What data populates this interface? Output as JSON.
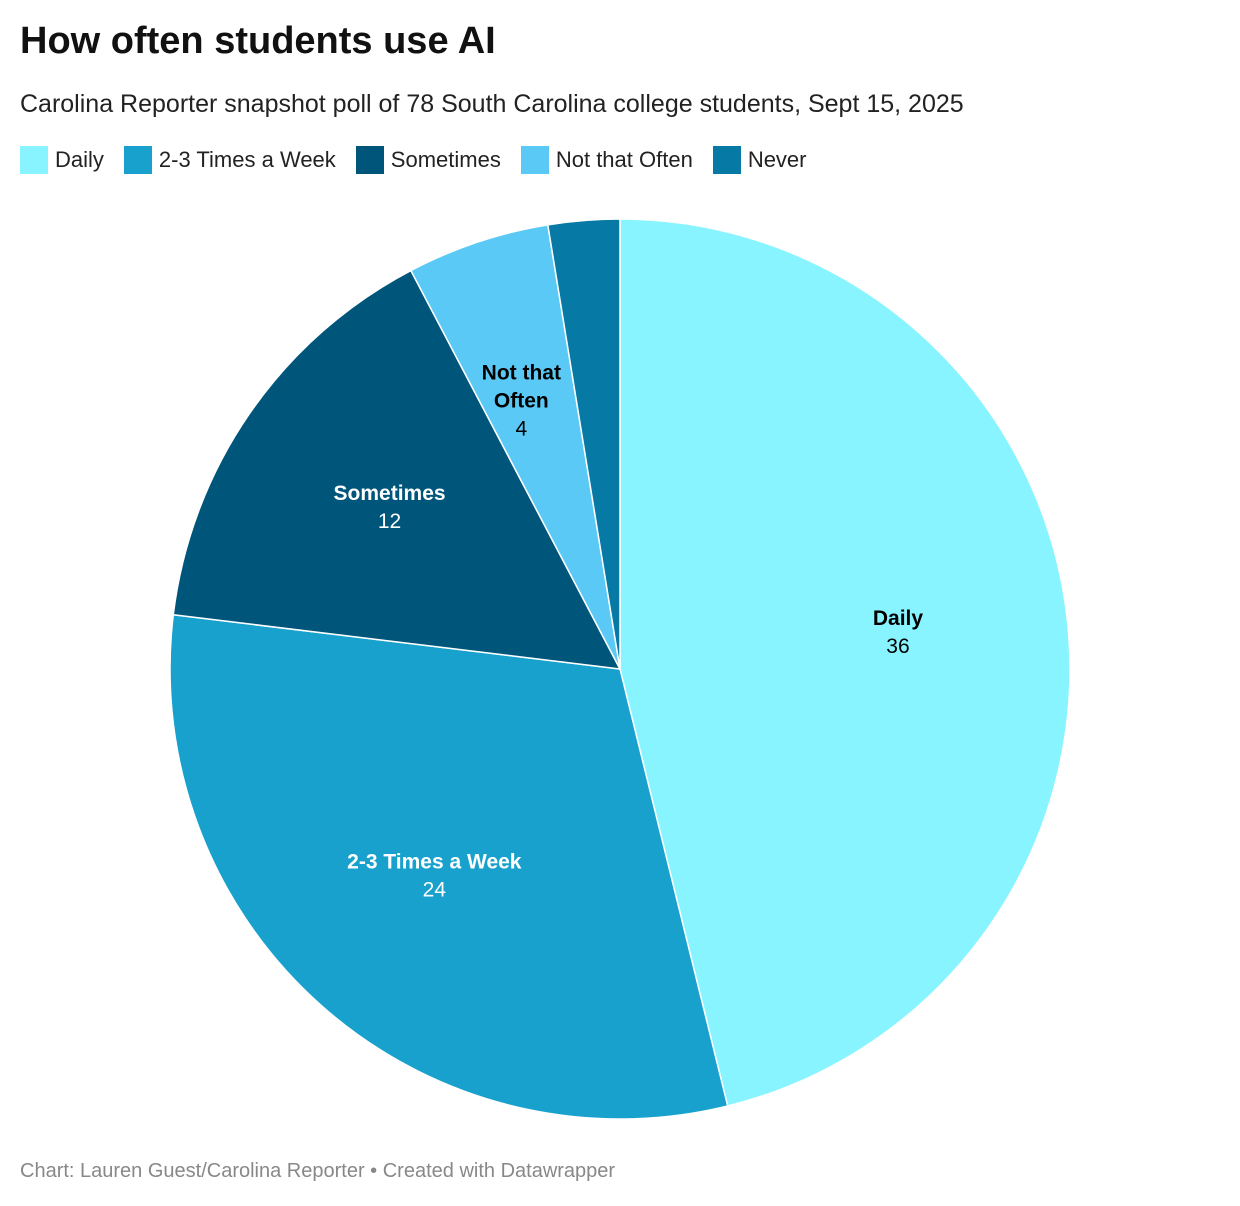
{
  "title": "How often students use AI",
  "subtitle": "Carolina Reporter snapshot poll of 78 South Carolina college students, Sept 15, 2025",
  "footer": "Chart: Lauren Guest/Carolina Reporter • Created with Datawrapper",
  "chart_data": {
    "type": "pie",
    "title": "How often students use AI",
    "legend_position": "top-left",
    "slices": [
      {
        "label": "Daily",
        "value": 36,
        "color": "#88f4ff",
        "text_color": "#000000",
        "show_label": true
      },
      {
        "label": "2-3 Times a Week",
        "value": 24,
        "color": "#19a1cd",
        "text_color": "#ffffff",
        "show_label": true
      },
      {
        "label": "Sometimes",
        "value": 12,
        "color": "#00557a",
        "text_color": "#ffffff",
        "show_label": true
      },
      {
        "label": "Not that Often",
        "value": 4,
        "color": "#5bc9f5",
        "text_color": "#000000",
        "show_label": true
      },
      {
        "label": "Never",
        "value": 2,
        "color": "#0679a4",
        "text_color": "#ffffff",
        "show_label": false
      }
    ]
  }
}
